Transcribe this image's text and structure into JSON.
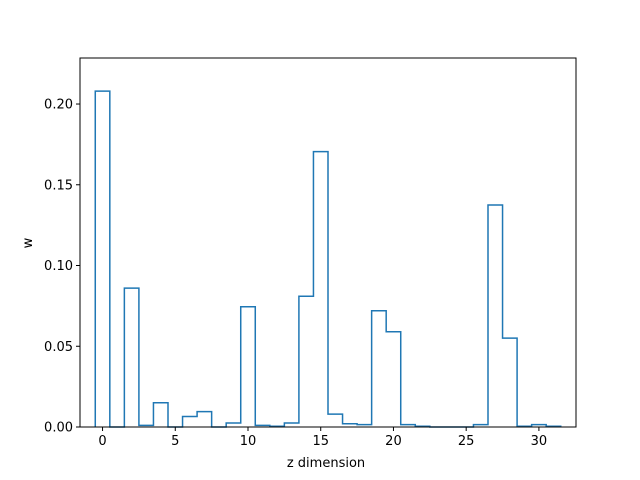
{
  "chart_data": {
    "type": "step",
    "title": "",
    "xlabel": "z dimension",
    "ylabel": "w",
    "xlim": [
      -1.55,
      32.55
    ],
    "ylim": [
      0,
      0.2285
    ],
    "xticks": [
      0,
      5,
      10,
      15,
      20,
      25,
      30
    ],
    "yticks": [
      0.0,
      0.05,
      0.1,
      0.15,
      0.2
    ],
    "ytick_labels": [
      "0.00",
      "0.05",
      "0.10",
      "0.15",
      "0.20"
    ],
    "grid": false,
    "legend": "none",
    "line_color": "#1f77b4",
    "series": [
      {
        "x": [
          0,
          1,
          2,
          3,
          4,
          5,
          6,
          7,
          8,
          9,
          10,
          11,
          12,
          13,
          14,
          15,
          16,
          17,
          18,
          19,
          20,
          21,
          22,
          23,
          24,
          25,
          26,
          27,
          28,
          29,
          30,
          31
        ],
        "values": [
          0.208,
          0.0,
          0.086,
          0.001,
          0.015,
          0.0,
          0.0065,
          0.0095,
          0.0,
          0.0025,
          0.0745,
          0.001,
          0.0005,
          0.0025,
          0.081,
          0.1705,
          0.008,
          0.002,
          0.0015,
          0.072,
          0.059,
          0.0015,
          0.0005,
          0.0,
          0.0,
          0.0,
          0.0015,
          0.1375,
          0.055,
          0.0005,
          0.0015,
          0.0005
        ]
      }
    ]
  }
}
